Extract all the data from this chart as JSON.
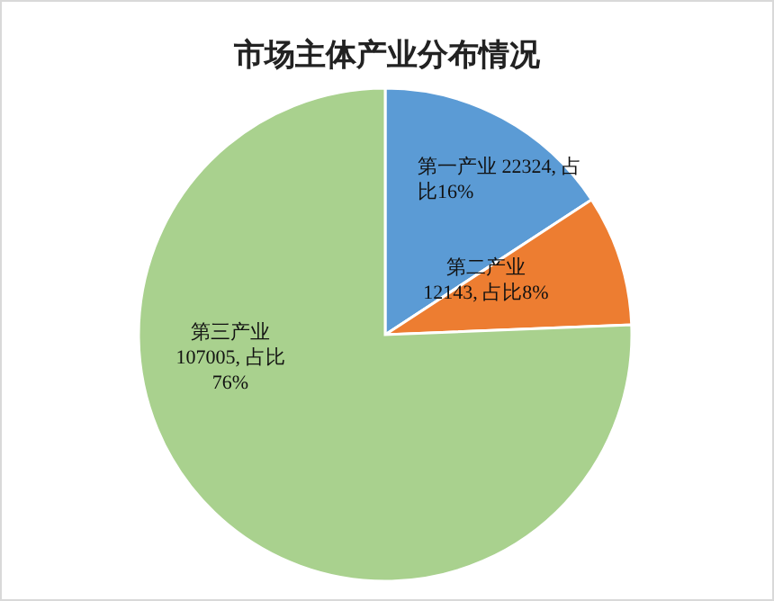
{
  "chart_data": {
    "type": "pie",
    "title": "市场主体产业分布情况",
    "categories": [
      "第一产业",
      "第二产业",
      "第三产业"
    ],
    "values": [
      22324,
      12143,
      107005
    ],
    "colors": [
      "#5b9bd5",
      "#ed7d31",
      "#a9d18e"
    ],
    "value_labels": [
      "22324, 占比16%",
      "12143, 占比8%",
      "107005, 占比76%"
    ]
  }
}
